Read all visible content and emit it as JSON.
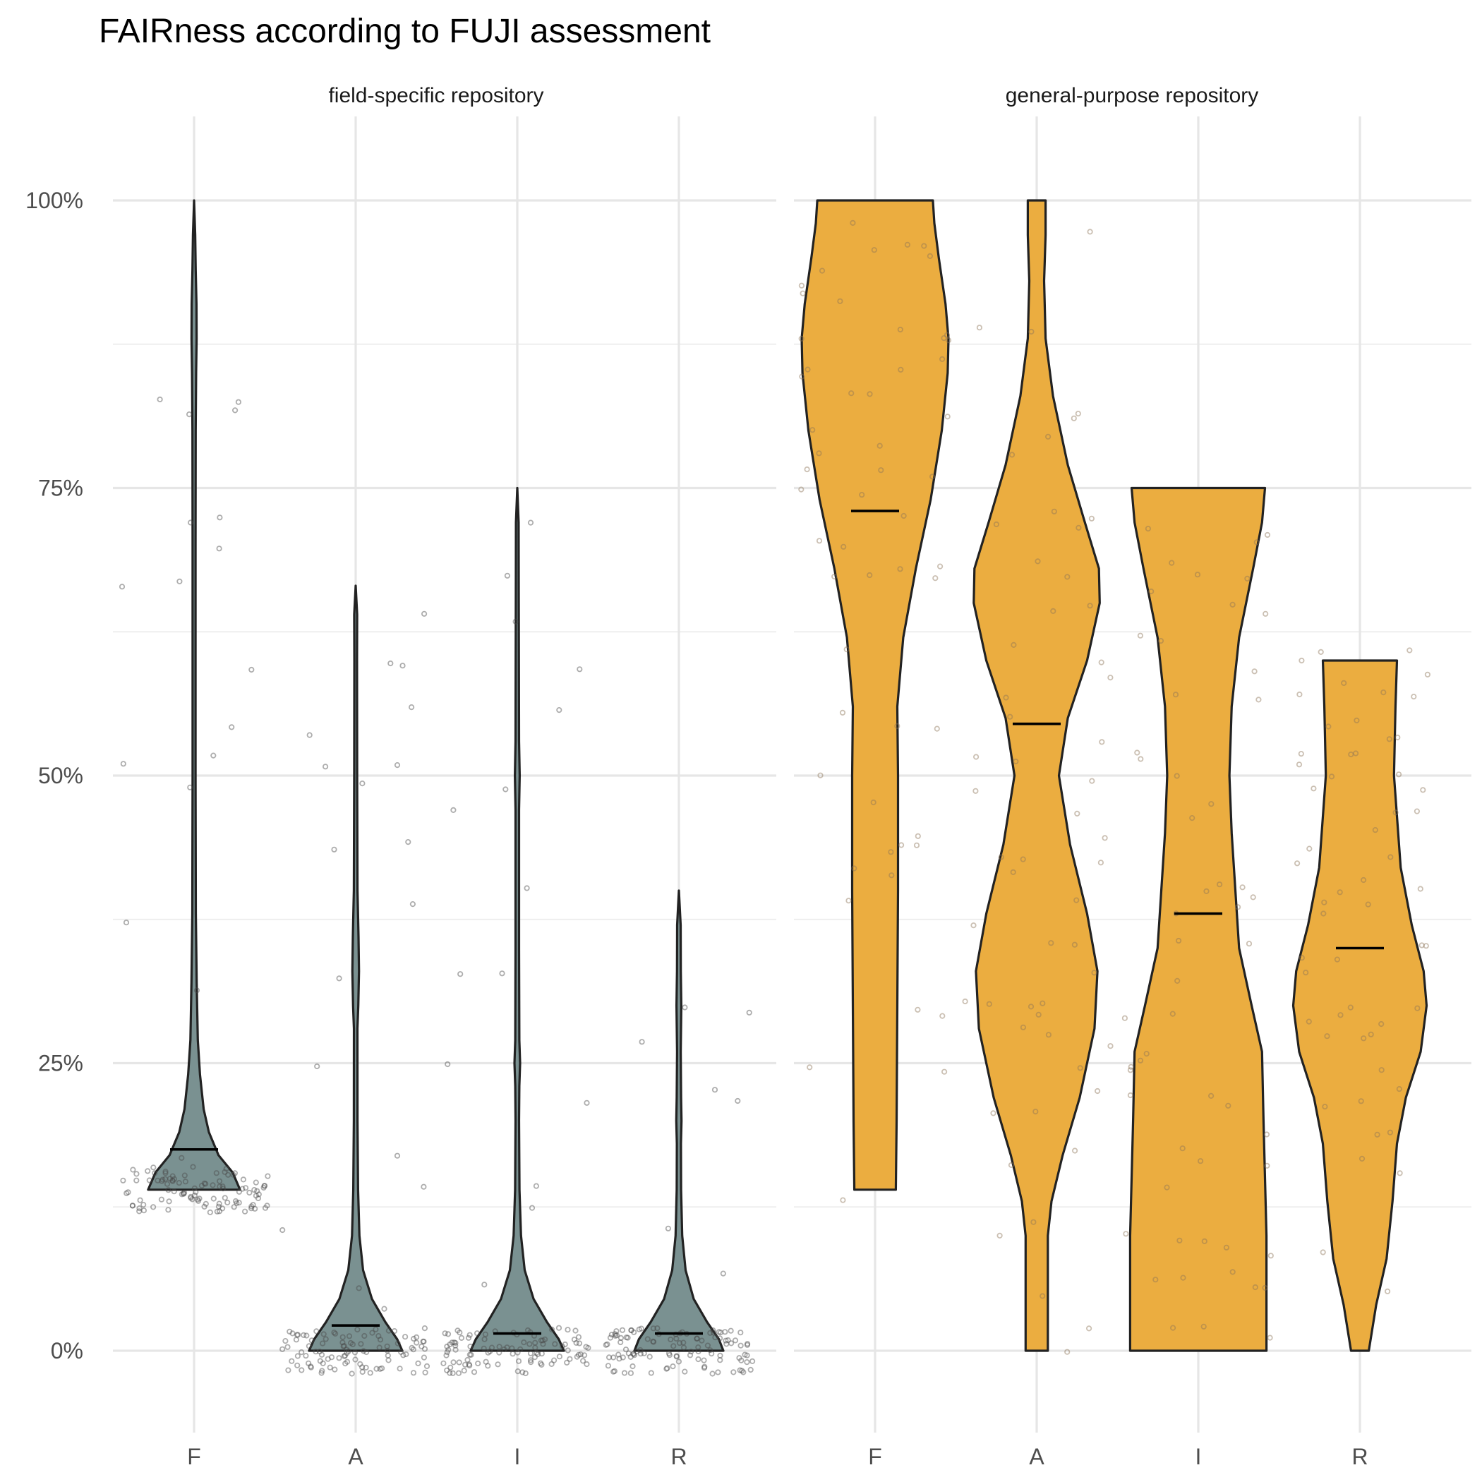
{
  "chart_data": {
    "type": "violin",
    "title": "FAIRness according to FUJI assessment",
    "categories": [
      "F",
      "A",
      "I",
      "R"
    ],
    "y_ticks": [
      "0%",
      "25%",
      "50%",
      "75%",
      "100%"
    ],
    "ylim": [
      -0.06,
      1.07
    ],
    "grid": "on",
    "panels": [
      {
        "label": "field-specific repository",
        "fill": "#7a9191",
        "point_color": "#4a4a4a",
        "violins": [
          {
            "category": "F",
            "min": 0.14,
            "max": 1.0,
            "mean": 0.175,
            "profile": [
              [
                0.14,
                0.62
              ],
              [
                0.155,
                0.52
              ],
              [
                0.17,
                0.33
              ],
              [
                0.19,
                0.2
              ],
              [
                0.21,
                0.13
              ],
              [
                0.24,
                0.08
              ],
              [
                0.27,
                0.05
              ],
              [
                0.32,
                0.035
              ],
              [
                0.38,
                0.024
              ],
              [
                0.5,
                0.02
              ],
              [
                0.7,
                0.02
              ],
              [
                0.8,
                0.022
              ],
              [
                0.85,
                0.028
              ],
              [
                0.88,
                0.034
              ],
              [
                0.91,
                0.032
              ],
              [
                0.94,
                0.022
              ],
              [
                0.97,
                0.015
              ],
              [
                1.0,
                0.0
              ]
            ]
          },
          {
            "category": "A",
            "min": 0.0,
            "max": 0.665,
            "mean": 0.022,
            "profile": [
              [
                0.0,
                0.63
              ],
              [
                0.01,
                0.56
              ],
              [
                0.025,
                0.4
              ],
              [
                0.045,
                0.22
              ],
              [
                0.07,
                0.1
              ],
              [
                0.1,
                0.05
              ],
              [
                0.14,
                0.032
              ],
              [
                0.2,
                0.025
              ],
              [
                0.28,
                0.024
              ],
              [
                0.3,
                0.035
              ],
              [
                0.33,
                0.045
              ],
              [
                0.36,
                0.038
              ],
              [
                0.4,
                0.025
              ],
              [
                0.5,
                0.02
              ],
              [
                0.6,
                0.018
              ],
              [
                0.64,
                0.02
              ],
              [
                0.665,
                0.0
              ]
            ]
          },
          {
            "category": "I",
            "min": 0.0,
            "max": 0.75,
            "mean": 0.015,
            "profile": [
              [
                0.0,
                0.63
              ],
              [
                0.01,
                0.56
              ],
              [
                0.025,
                0.4
              ],
              [
                0.045,
                0.22
              ],
              [
                0.07,
                0.1
              ],
              [
                0.1,
                0.05
              ],
              [
                0.14,
                0.03
              ],
              [
                0.2,
                0.024
              ],
              [
                0.23,
                0.028
              ],
              [
                0.25,
                0.038
              ],
              [
                0.27,
                0.028
              ],
              [
                0.35,
                0.024
              ],
              [
                0.47,
                0.024
              ],
              [
                0.5,
                0.032
              ],
              [
                0.53,
                0.024
              ],
              [
                0.65,
                0.02
              ],
              [
                0.72,
                0.018
              ],
              [
                0.75,
                0.0
              ]
            ]
          },
          {
            "category": "R",
            "min": 0.0,
            "max": 0.4,
            "mean": 0.015,
            "profile": [
              [
                0.0,
                0.6
              ],
              [
                0.01,
                0.54
              ],
              [
                0.025,
                0.38
              ],
              [
                0.045,
                0.2
              ],
              [
                0.07,
                0.09
              ],
              [
                0.1,
                0.045
              ],
              [
                0.14,
                0.03
              ],
              [
                0.18,
                0.028
              ],
              [
                0.2,
                0.035
              ],
              [
                0.22,
                0.03
              ],
              [
                0.26,
                0.025
              ],
              [
                0.3,
                0.032
              ],
              [
                0.33,
                0.026
              ],
              [
                0.37,
                0.024
              ],
              [
                0.4,
                0.0
              ]
            ]
          }
        ]
      },
      {
        "label": "general-purpose repository",
        "fill": "#ebad40",
        "point_color": "#8c7357",
        "violins": [
          {
            "category": "F",
            "min": 0.14,
            "max": 1.0,
            "mean": 0.73,
            "profile": [
              [
                0.14,
                0.28
              ],
              [
                0.2,
                0.29
              ],
              [
                0.3,
                0.3
              ],
              [
                0.4,
                0.31
              ],
              [
                0.5,
                0.31
              ],
              [
                0.56,
                0.3
              ],
              [
                0.62,
                0.38
              ],
              [
                0.68,
                0.55
              ],
              [
                0.74,
                0.75
              ],
              [
                0.8,
                0.9
              ],
              [
                0.85,
                0.98
              ],
              [
                0.88,
                0.99
              ],
              [
                0.91,
                0.95
              ],
              [
                0.95,
                0.86
              ],
              [
                0.98,
                0.8
              ],
              [
                1.0,
                0.78
              ]
            ]
          },
          {
            "category": "A",
            "min": 0.0,
            "max": 1.0,
            "mean": 0.545,
            "profile": [
              [
                0.0,
                0.15
              ],
              [
                0.1,
                0.15
              ],
              [
                0.13,
                0.2
              ],
              [
                0.17,
                0.35
              ],
              [
                0.22,
                0.58
              ],
              [
                0.28,
                0.78
              ],
              [
                0.33,
                0.82
              ],
              [
                0.38,
                0.68
              ],
              [
                0.44,
                0.45
              ],
              [
                0.5,
                0.3
              ],
              [
                0.55,
                0.42
              ],
              [
                0.6,
                0.68
              ],
              [
                0.65,
                0.85
              ],
              [
                0.68,
                0.84
              ],
              [
                0.72,
                0.65
              ],
              [
                0.77,
                0.42
              ],
              [
                0.83,
                0.22
              ],
              [
                0.88,
                0.12
              ],
              [
                0.93,
                0.1
              ],
              [
                0.97,
                0.12
              ],
              [
                1.0,
                0.12
              ]
            ]
          },
          {
            "category": "I",
            "min": 0.0,
            "max": 0.75,
            "mean": 0.38,
            "profile": [
              [
                0.0,
                0.92
              ],
              [
                0.1,
                0.92
              ],
              [
                0.2,
                0.88
              ],
              [
                0.26,
                0.86
              ],
              [
                0.3,
                0.72
              ],
              [
                0.35,
                0.55
              ],
              [
                0.45,
                0.45
              ],
              [
                0.5,
                0.42
              ],
              [
                0.56,
                0.45
              ],
              [
                0.62,
                0.55
              ],
              [
                0.68,
                0.74
              ],
              [
                0.72,
                0.86
              ],
              [
                0.75,
                0.9
              ]
            ]
          },
          {
            "category": "R",
            "min": 0.0,
            "max": 0.6,
            "mean": 0.35,
            "profile": [
              [
                0.0,
                0.12
              ],
              [
                0.04,
                0.22
              ],
              [
                0.08,
                0.36
              ],
              [
                0.13,
                0.44
              ],
              [
                0.18,
                0.5
              ],
              [
                0.22,
                0.62
              ],
              [
                0.26,
                0.82
              ],
              [
                0.3,
                0.9
              ],
              [
                0.33,
                0.86
              ],
              [
                0.37,
                0.7
              ],
              [
                0.42,
                0.55
              ],
              [
                0.5,
                0.46
              ],
              [
                0.56,
                0.48
              ],
              [
                0.6,
                0.5
              ]
            ]
          }
        ]
      }
    ]
  }
}
